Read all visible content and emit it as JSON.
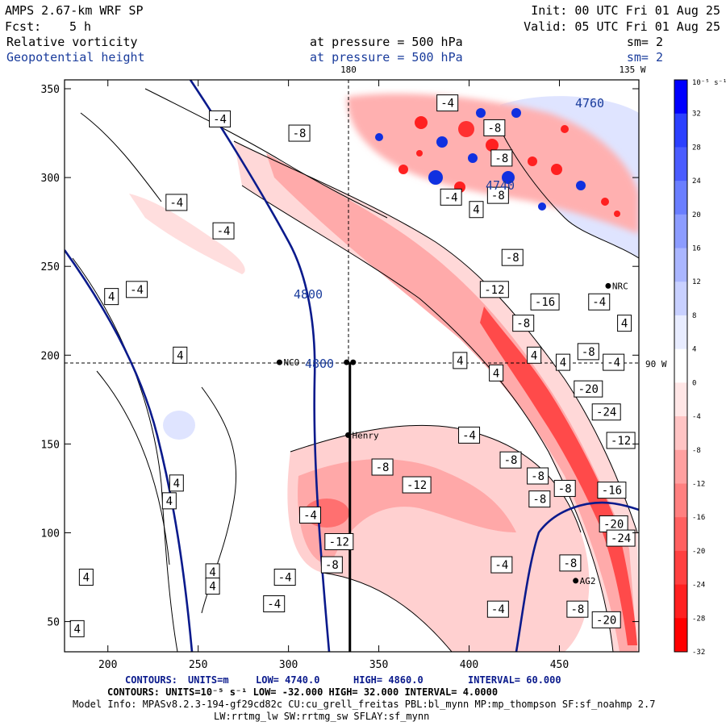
{
  "header": {
    "model": "AMPS 2.67-km WRF SP",
    "fcst_label": "Fcst:",
    "fcst_value": "5 h",
    "init": "Init: 00 UTC Fri 01 Aug 25",
    "valid": "Valid: 05 UTC Fri 01 Aug 25",
    "field1": "Relative vorticity",
    "field2": "Geopotential height",
    "pressure1": "at pressure =  500 hPa",
    "pressure2": "at pressure =  500 hPa",
    "sm1": "sm= 2",
    "sm2": "sm= 2"
  },
  "map_labels": {
    "lon_180": "180",
    "lon_135w": "135 W",
    "lat_90w": "90 W",
    "stations": [
      "NCO",
      "Henry",
      "NRC",
      "AG2"
    ]
  },
  "footer": {
    "line1_contours": "CONTOURS:",
    "line1_units": "UNITS=m",
    "line1_low": "LOW=  4740.0",
    "line1_high": "HIGH=  4860.0",
    "line1_interval": "INTERVAL=  60.000",
    "line2": "CONTOURS:  UNITS=10⁻⁵ s⁻¹  LOW= -32.000      HIGH=  32.000      INTERVAL=  4.0000",
    "line3": "Model Info: MPASv8.2.3-194-gf29cd82c CU:cu_grell_freitas PBL:bl_mynn MP:mp_thompson SF:sf_noahmp 2.7",
    "line4": "LW:rrtmg_lw SW:rrtmg_sw SFLAY:sf_mynn"
  },
  "colors": {
    "negative_vorticity": "#ff2020",
    "positive_vorticity": "#1030e0",
    "height_contour": "#0a1a8c",
    "label_blue": "#1a3c9c"
  },
  "chart_data": {
    "type": "heatmap",
    "x_ticks": [
      200,
      250,
      300,
      350,
      400,
      450
    ],
    "y_ticks": [
      50,
      100,
      150,
      200,
      250,
      300,
      350
    ],
    "xlim": [
      176,
      494
    ],
    "ylim": [
      33,
      355
    ],
    "height_contour_labels": [
      "4800",
      "4800",
      "4760",
      "4740"
    ],
    "vorticity_labels": [
      {
        "x": 306,
        "y": 325,
        "v": "-8"
      },
      {
        "x": 238,
        "y": 286,
        "v": "-4"
      },
      {
        "x": 264,
        "y": 270,
        "v": "-4"
      },
      {
        "x": 404,
        "y": 282,
        "v": "4"
      },
      {
        "x": 424,
        "y": 255,
        "v": "-8"
      },
      {
        "x": 414,
        "y": 237,
        "v": "-12"
      },
      {
        "x": 442,
        "y": 230,
        "v": "-16"
      },
      {
        "x": 472,
        "y": 230,
        "v": "-4"
      },
      {
        "x": 430,
        "y": 218,
        "v": "-8"
      },
      {
        "x": 216,
        "y": 237,
        "v": "-4"
      },
      {
        "x": 202,
        "y": 233,
        "v": "4"
      },
      {
        "x": 240,
        "y": 200,
        "v": "4"
      },
      {
        "x": 395,
        "y": 197,
        "v": "4"
      },
      {
        "x": 436,
        "y": 200,
        "v": "4"
      },
      {
        "x": 466,
        "y": 202,
        "v": "-8"
      },
      {
        "x": 480,
        "y": 196,
        "v": "-4"
      },
      {
        "x": 486,
        "y": 218,
        "v": "4"
      },
      {
        "x": 415,
        "y": 190,
        "v": "4"
      },
      {
        "x": 452,
        "y": 196,
        "v": "4"
      },
      {
        "x": 466,
        "y": 181,
        "v": "-20"
      },
      {
        "x": 476,
        "y": 168,
        "v": "-24"
      },
      {
        "x": 484,
        "y": 152,
        "v": "-12"
      },
      {
        "x": 400,
        "y": 155,
        "v": "-4"
      },
      {
        "x": 352,
        "y": 137,
        "v": "-8"
      },
      {
        "x": 371,
        "y": 127,
        "v": "-12"
      },
      {
        "x": 312,
        "y": 110,
        "v": "-4"
      },
      {
        "x": 328,
        "y": 95,
        "v": "-12"
      },
      {
        "x": 324,
        "y": 82,
        "v": "-8"
      },
      {
        "x": 423,
        "y": 141,
        "v": "-8"
      },
      {
        "x": 438,
        "y": 132,
        "v": "-8"
      },
      {
        "x": 439,
        "y": 119,
        "v": "-8"
      },
      {
        "x": 453,
        "y": 125,
        "v": "-8"
      },
      {
        "x": 479,
        "y": 124,
        "v": "-16"
      },
      {
        "x": 480,
        "y": 105,
        "v": "-20"
      },
      {
        "x": 484,
        "y": 97,
        "v": "-24"
      },
      {
        "x": 456,
        "y": 83,
        "v": "-8"
      },
      {
        "x": 418,
        "y": 82,
        "v": "-4"
      },
      {
        "x": 416,
        "y": 57,
        "v": "-4"
      },
      {
        "x": 460,
        "y": 57,
        "v": "-8"
      },
      {
        "x": 476,
        "y": 51,
        "v": "-20"
      },
      {
        "x": 292,
        "y": 60,
        "v": "-4"
      },
      {
        "x": 298,
        "y": 75,
        "v": "-4"
      },
      {
        "x": 238,
        "y": 128,
        "v": "4"
      },
      {
        "x": 234,
        "y": 118,
        "v": "4"
      },
      {
        "x": 188,
        "y": 75,
        "v": "4"
      },
      {
        "x": 183,
        "y": 46,
        "v": "4"
      },
      {
        "x": 258,
        "y": 78,
        "v": "4"
      },
      {
        "x": 258,
        "y": 70,
        "v": "4"
      },
      {
        "x": 262,
        "y": 333,
        "v": "-4"
      },
      {
        "x": 388,
        "y": 342,
        "v": "-4"
      },
      {
        "x": 414,
        "y": 328,
        "v": "-8"
      },
      {
        "x": 418,
        "y": 311,
        "v": "-8"
      },
      {
        "x": 390,
        "y": 289,
        "v": "-4"
      },
      {
        "x": 416,
        "y": 290,
        "v": "-8"
      }
    ],
    "colorbar": {
      "unit": "10⁻⁵ s⁻¹",
      "levels": [
        32,
        28,
        24,
        20,
        16,
        12,
        8,
        4,
        0,
        -4,
        -8,
        -12,
        -16,
        -20,
        -24,
        -28,
        -32
      ],
      "colors": [
        "#0000ff",
        "#2b40ff",
        "#4a5cff",
        "#6a7eff",
        "#8c9cff",
        "#aab6ff",
        "#c8d0ff",
        "#e8ecff",
        "#ffffff",
        "#ffe6e6",
        "#ffc4c4",
        "#ffa0a0",
        "#ff8080",
        "#ff6060",
        "#ff4040",
        "#ff2020",
        "#ff0000"
      ]
    },
    "stations": [
      {
        "name": "NCO",
        "x": 295,
        "y": 196
      },
      {
        "name": "Henry",
        "x": 333,
        "y": 155
      },
      {
        "name": "NRC",
        "x": 477,
        "y": 239
      },
      {
        "name": "AG2",
        "x": 459,
        "y": 73
      }
    ],
    "cross_section": {
      "x": 334,
      "y_from": 33,
      "y_to": 196
    }
  }
}
